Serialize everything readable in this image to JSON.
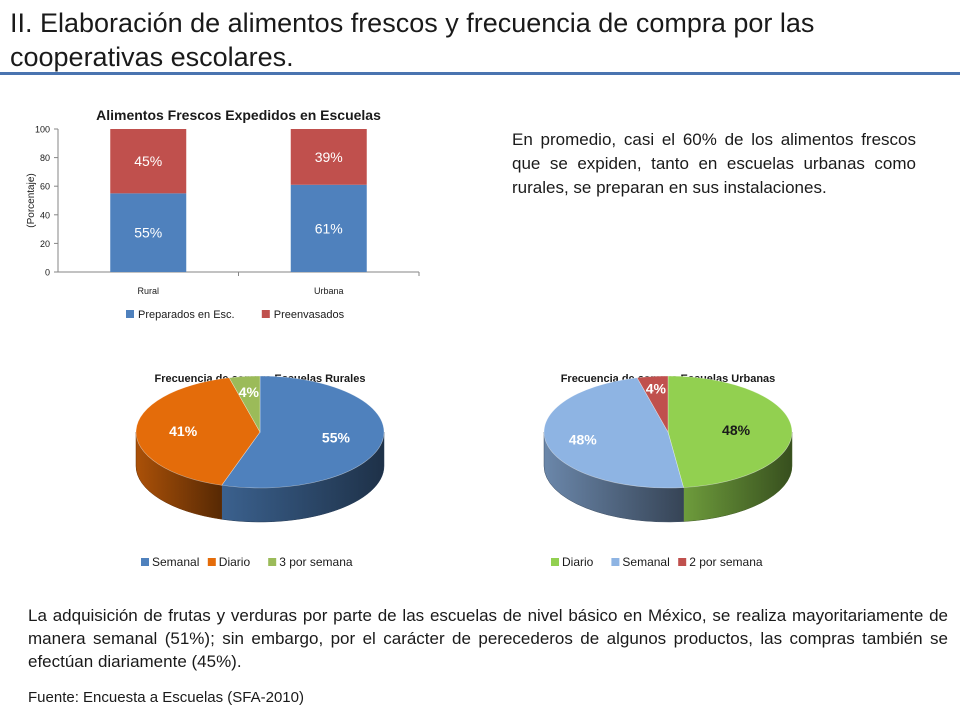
{
  "slide": {
    "title": "II. Elaboración de alimentos frescos y frecuencia de compra por las cooperativas escolares.",
    "text_right": "En promedio, casi el 60% de los alimentos frescos que se expiden, tanto en escuelas urbanas como rurales, se preparan en sus instalaciones.",
    "text_bottom": "La adquisición de frutas y verduras por parte de las escuelas de nivel básico en México, se realiza mayoritariamente de manera semanal (51%); sin embargo, por el carácter de perecederos de algunos productos, las compras también se efectúan diariamente (45%).",
    "source": "Fuente: Encuesta a  Escuelas (SFA-2010)"
  },
  "chart_data": [
    {
      "type": "bar",
      "stacked": true,
      "title": "Alimentos Frescos Expedidos en Escuelas",
      "ylabel": "(Porcentaje)",
      "ylim": [
        0,
        100
      ],
      "yticks": [
        "0",
        "20",
        "40",
        "60",
        "80",
        "100"
      ],
      "categories": [
        "Rural",
        "Urbana"
      ],
      "series": [
        {
          "name": "Preparados en Esc.",
          "values": [
            55,
            61
          ],
          "labels": [
            "55%",
            "61%"
          ],
          "color": "#4f81bd"
        },
        {
          "name": "Preenvasados",
          "values": [
            45,
            39
          ],
          "labels": [
            "45%",
            "39%"
          ],
          "color": "#c0504d"
        }
      ],
      "legend": "bottom"
    },
    {
      "type": "pie",
      "style": "3d",
      "title": "Frecuencia de compra Escuelas Rurales",
      "slices": [
        {
          "name": "Semanal",
          "value": 55,
          "label": "55%",
          "color": "#4f81bd"
        },
        {
          "name": "Diario",
          "value": 41,
          "label": "41%",
          "color": "#e46c0a"
        },
        {
          "name": "3 por semana",
          "value": 4,
          "label": "4%",
          "color": "#9bbb59"
        }
      ],
      "legend": "bottom"
    },
    {
      "type": "pie",
      "style": "3d",
      "title": "Frecuencia de compra Escuelas Urbanas",
      "slices": [
        {
          "name": "Diario",
          "value": 48,
          "label": "48%",
          "color": "#92d050"
        },
        {
          "name": "Semanal",
          "value": 48,
          "label": "48%",
          "color": "#8eb4e3"
        },
        {
          "name": "2 por semana",
          "value": 4,
          "label": "4%",
          "color": "#c0504d"
        }
      ],
      "legend": "bottom"
    }
  ]
}
